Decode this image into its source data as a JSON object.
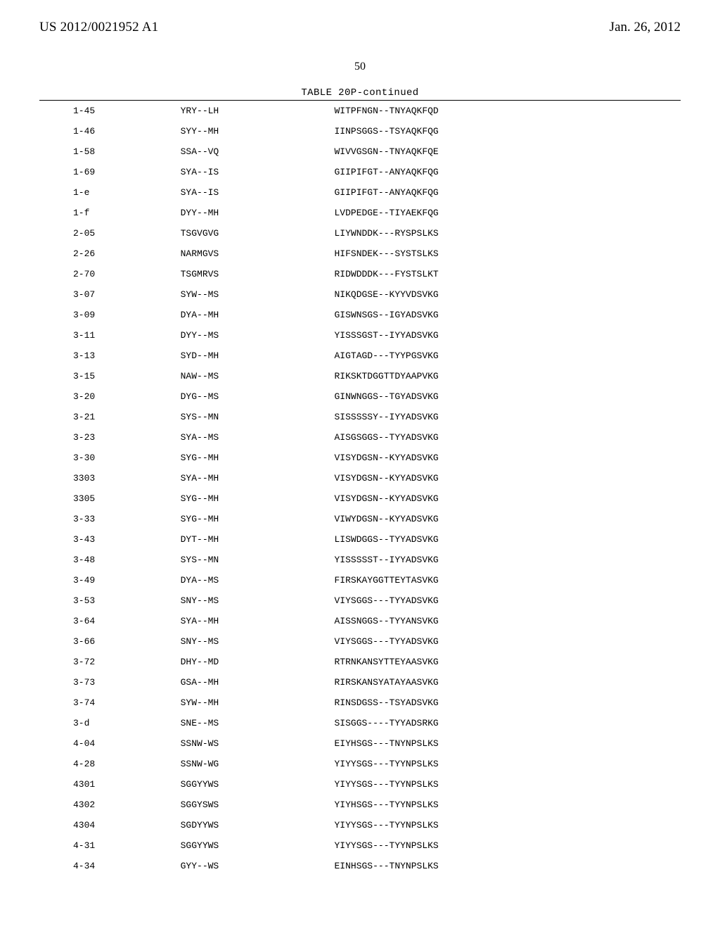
{
  "header": {
    "publication_number": "US 2012/0021952 A1",
    "publication_date": "Jan. 26, 2012"
  },
  "page_number": "50",
  "table": {
    "caption": "TABLE 20P-continued",
    "columns": [
      "id",
      "seq_a",
      "seq_b"
    ],
    "font_family": "Courier New",
    "font_size_pt": 10,
    "rule_color": "#000000",
    "background_color": "#ffffff",
    "rows": [
      {
        "id": "1-45",
        "seq_a": "YRY--LH",
        "seq_b": "WITPFNGN--TNYAQKFQD"
      },
      {
        "id": "1-46",
        "seq_a": "SYY--MH",
        "seq_b": "IINPSGGS--TSYAQKFQG"
      },
      {
        "id": "1-58",
        "seq_a": "SSA--VQ",
        "seq_b": "WIVVGSGN--TNYAQKFQE"
      },
      {
        "id": "1-69",
        "seq_a": "SYA--IS",
        "seq_b": "GIIPIFGT--ANYAQKFQG"
      },
      {
        "id": "1-e",
        "seq_a": "SYA--IS",
        "seq_b": "GIIPIFGT--ANYAQKFQG"
      },
      {
        "id": "1-f",
        "seq_a": "DYY--MH",
        "seq_b": "LVDPEDGE--TIYAEKFQG"
      },
      {
        "id": "2-05",
        "seq_a": "TSGVGVG",
        "seq_b": "LIYWNDDK---RYSPSLKS"
      },
      {
        "id": "2-26",
        "seq_a": "NARMGVS",
        "seq_b": "HIFSNDEK---SYSTSLKS"
      },
      {
        "id": "2-70",
        "seq_a": "TSGMRVS",
        "seq_b": "RIDWDDDK---FYSTSLKT"
      },
      {
        "id": "3-07",
        "seq_a": "SYW--MS",
        "seq_b": "NIKQDGSE--KYYVDSVKG"
      },
      {
        "id": "3-09",
        "seq_a": "DYA--MH",
        "seq_b": "GISWNSGS--IGYADSVKG"
      },
      {
        "id": "3-11",
        "seq_a": "DYY--MS",
        "seq_b": "YISSSGST--IYYADSVKG"
      },
      {
        "id": "3-13",
        "seq_a": "SYD--MH",
        "seq_b": "AIGTAGD---TYYPGSVKG"
      },
      {
        "id": "3-15",
        "seq_a": "NAW--MS",
        "seq_b": "RIKSKTDGGTTDYAAPVKG"
      },
      {
        "id": "3-20",
        "seq_a": "DYG--MS",
        "seq_b": "GINWNGGS--TGYADSVKG"
      },
      {
        "id": "3-21",
        "seq_a": "SYS--MN",
        "seq_b": "SISSSSSY--IYYADSVKG"
      },
      {
        "id": "3-23",
        "seq_a": "SYA--MS",
        "seq_b": "AISGSGGS--TYYADSVKG"
      },
      {
        "id": "3-30",
        "seq_a": "SYG--MH",
        "seq_b": "VISYDGSN--KYYADSVKG"
      },
      {
        "id": "3303",
        "seq_a": "SYA--MH",
        "seq_b": "VISYDGSN--KYYADSVKG"
      },
      {
        "id": "3305",
        "seq_a": "SYG--MH",
        "seq_b": "VISYDGSN--KYYADSVKG"
      },
      {
        "id": "3-33",
        "seq_a": "SYG--MH",
        "seq_b": "VIWYDGSN--KYYADSVKG"
      },
      {
        "id": "3-43",
        "seq_a": "DYT--MH",
        "seq_b": "LISWDGGS--TYYADSVKG"
      },
      {
        "id": "3-48",
        "seq_a": "SYS--MN",
        "seq_b": "YISSSSST--IYYADSVKG"
      },
      {
        "id": "3-49",
        "seq_a": "DYA--MS",
        "seq_b": "FIRSKAYGGTTEYTASVKG"
      },
      {
        "id": "3-53",
        "seq_a": "SNY--MS",
        "seq_b": "VIYSGGS---TYYADSVKG"
      },
      {
        "id": "3-64",
        "seq_a": "SYA--MH",
        "seq_b": "AISSNGGS--TYYANSVKG"
      },
      {
        "id": "3-66",
        "seq_a": "SNY--MS",
        "seq_b": "VIYSGGS---TYYADSVKG"
      },
      {
        "id": "3-72",
        "seq_a": "DHY--MD",
        "seq_b": "RTRNKANSYTTEYAASVKG"
      },
      {
        "id": "3-73",
        "seq_a": "GSA--MH",
        "seq_b": "RIRSKANSYATAYAASVKG"
      },
      {
        "id": "3-74",
        "seq_a": "SYW--MH",
        "seq_b": "RINSDGSS--TSYADSVKG"
      },
      {
        "id": "3-d",
        "seq_a": "SNE--MS",
        "seq_b": "SISGGS----TYYADSRKG"
      },
      {
        "id": "4-04",
        "seq_a": "SSNW-WS",
        "seq_b": "EIYHSGS---TNYNPSLKS"
      },
      {
        "id": "4-28",
        "seq_a": "SSNW-WG",
        "seq_b": "YIYYSGS---TYYNPSLKS"
      },
      {
        "id": "4301",
        "seq_a": "SGGYYWS",
        "seq_b": "YIYYSGS---TYYNPSLKS"
      },
      {
        "id": "4302",
        "seq_a": "SGGYSWS",
        "seq_b": "YIYHSGS---TYYNPSLKS"
      },
      {
        "id": "4304",
        "seq_a": "SGDYYWS",
        "seq_b": "YIYYSGS---TYYNPSLKS"
      },
      {
        "id": "4-31",
        "seq_a": "SGGYYWS",
        "seq_b": "YIYYSGS---TYYNPSLKS"
      },
      {
        "id": "4-34",
        "seq_a": "GYY--WS",
        "seq_b": "EINHSGS---TNYNPSLKS"
      }
    ]
  }
}
